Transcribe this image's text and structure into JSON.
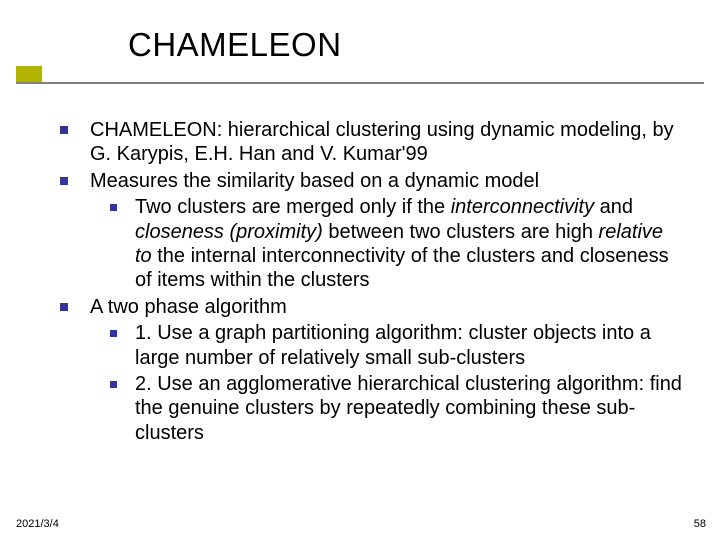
{
  "title": "CHAMELEON",
  "accent_color": "#b2b200",
  "bullet_color": "#333399",
  "bullets": [
    {
      "level": 1,
      "runs": [
        {
          "t": "CHAMELEON: hierarchical clustering using dynamic modeling, by G. Karypis, E.H. Han and V. Kumar'99",
          "i": false
        }
      ]
    },
    {
      "level": 1,
      "runs": [
        {
          "t": "Measures the similarity based on a dynamic model",
          "i": false
        }
      ]
    },
    {
      "level": 2,
      "runs": [
        {
          "t": "Two clusters are merged only if the ",
          "i": false
        },
        {
          "t": "interconnectivity",
          "i": true
        },
        {
          "t": " and ",
          "i": false
        },
        {
          "t": "closeness (proximity)",
          "i": true
        },
        {
          "t": " between two clusters are high ",
          "i": false
        },
        {
          "t": "relative to",
          "i": true
        },
        {
          "t": " the internal interconnectivity of the clusters and closeness of items within the clusters",
          "i": false
        }
      ]
    },
    {
      "level": 1,
      "runs": [
        {
          "t": "A two phase algorithm",
          "i": false
        }
      ]
    },
    {
      "level": 2,
      "runs": [
        {
          "t": "1. Use a graph partitioning algorithm: cluster objects into a large number of relatively small sub-clusters",
          "i": false
        }
      ]
    },
    {
      "level": 2,
      "runs": [
        {
          "t": "2. Use an agglomerative hierarchical clustering algorithm: find the genuine clusters by repeatedly combining these sub-clusters",
          "i": false
        }
      ]
    }
  ],
  "footer": {
    "date": "2021/3/4",
    "page": "58"
  }
}
